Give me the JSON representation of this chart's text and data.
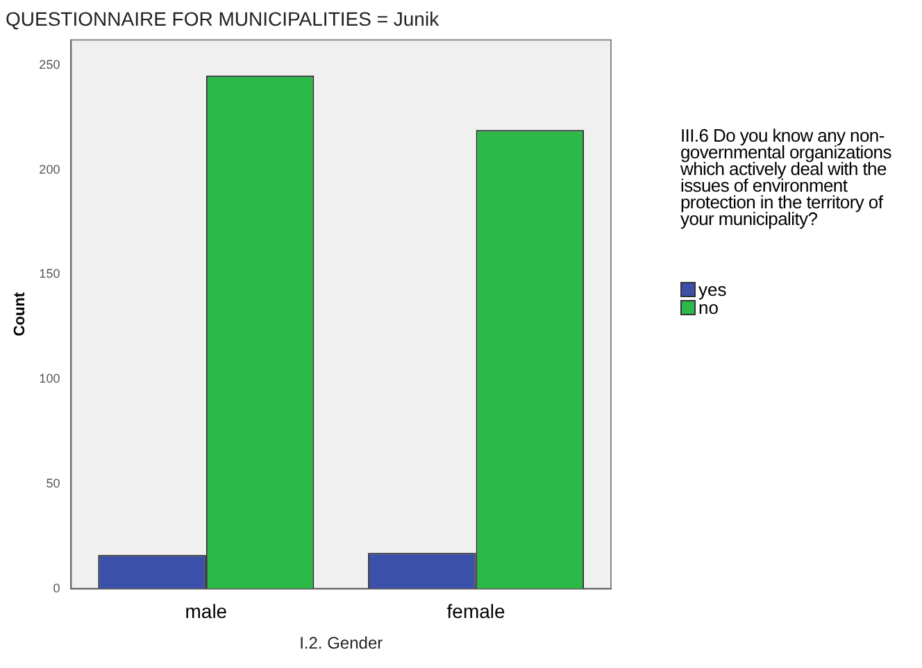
{
  "chart_data": {
    "type": "bar",
    "title": "QUESTIONNAIRE FOR MUNICIPALITIES = Junik",
    "xlabel": "I.2. Gender",
    "ylabel": "Count",
    "legend_title": "III.6 Do you know any non-governmental organizations which actively deal with the issues of environment protection in the territory of your municipality?",
    "categories": [
      "male",
      "female"
    ],
    "series": [
      {
        "name": "yes",
        "color": "#3b50a8",
        "values": [
          16,
          17
        ]
      },
      {
        "name": "no",
        "color": "#2db84a",
        "values": [
          245,
          219
        ]
      }
    ],
    "ylim": [
      0,
      262
    ],
    "yticks": [
      0,
      50,
      100,
      150,
      200,
      250
    ],
    "grid": false,
    "legend": "right"
  }
}
